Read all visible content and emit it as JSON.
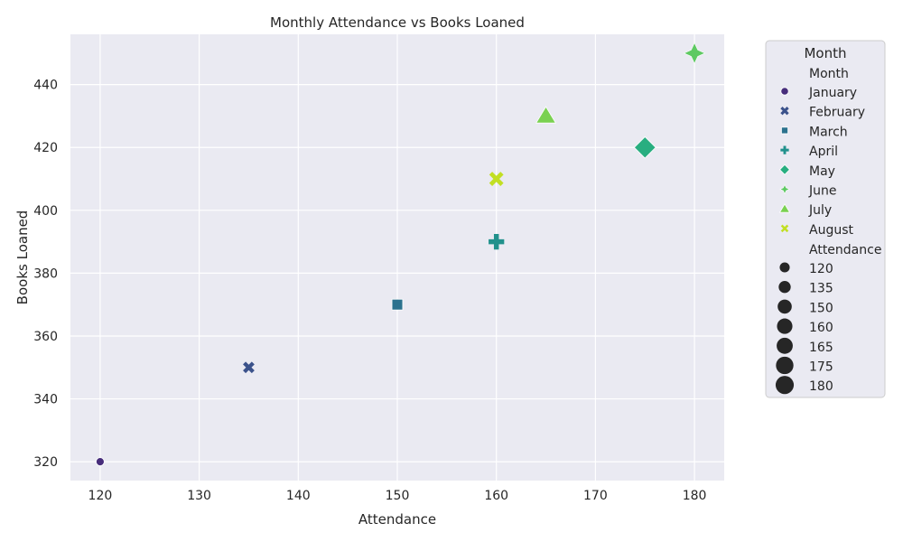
{
  "chart_data": {
    "type": "scatter",
    "title": "Monthly Attendance vs Books Loaned",
    "xlabel": "Attendance",
    "ylabel": "Books Loaned",
    "xlim": [
      117,
      183
    ],
    "ylim": [
      314,
      456
    ],
    "xticks": [
      120,
      130,
      140,
      150,
      160,
      170,
      180
    ],
    "yticks": [
      320,
      340,
      360,
      380,
      400,
      420,
      440
    ],
    "grid": true,
    "legend_position": "outside-right",
    "series": [
      {
        "name": "January",
        "x": 120,
        "y": 320,
        "marker": "circle",
        "color": "#472d7b"
      },
      {
        "name": "February",
        "x": 135,
        "y": 350,
        "marker": "x",
        "color": "#3b528b"
      },
      {
        "name": "March",
        "x": 150,
        "y": 370,
        "marker": "square",
        "color": "#2c728e"
      },
      {
        "name": "April",
        "x": 160,
        "y": 390,
        "marker": "plus",
        "color": "#21918c"
      },
      {
        "name": "May",
        "x": 175,
        "y": 420,
        "marker": "diamond",
        "color": "#28ae80"
      },
      {
        "name": "June",
        "x": 180,
        "y": 450,
        "marker": "star",
        "color": "#5ec962"
      },
      {
        "name": "July",
        "x": 165,
        "y": 430,
        "marker": "triangle",
        "color": "#7ad151"
      },
      {
        "name": "August",
        "x": 160,
        "y": 410,
        "marker": "x-thin",
        "color": "#c2df23"
      }
    ],
    "legend": {
      "title": "Month",
      "hue_header": "Month",
      "size_header": "Attendance",
      "size_values": [
        120,
        135,
        150,
        160,
        165,
        175,
        180
      ]
    }
  }
}
